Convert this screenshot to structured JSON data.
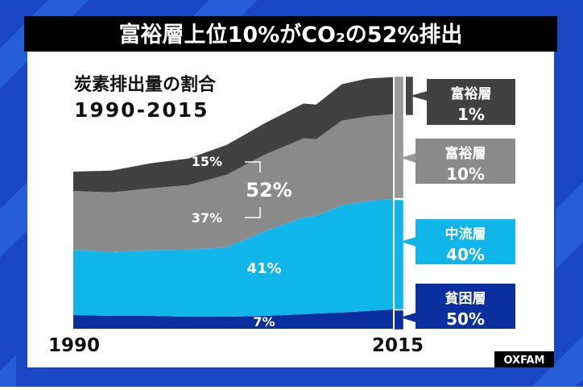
{
  "title": "富裕層上位10%がCO₂の52%排出",
  "source": "OXFAM",
  "colors": {
    "background": "#1a47c4",
    "stripe": "#2a64dc",
    "top1": "#414141",
    "top10": "#8a8a8a",
    "middle40": "#10b6ea",
    "bottom50": "#0c2fa0"
  },
  "chart_data": {
    "type": "area",
    "stacked": true,
    "title": "炭素排出量の割合",
    "subtitle": "1990-2015",
    "x": [
      1990,
      1993,
      1996,
      1999,
      2002,
      2005,
      2008,
      2009,
      2011,
      2013,
      2015
    ],
    "x_tick_labels": [
      "1990",
      "2015"
    ],
    "ylim": [
      0,
      165
    ],
    "grid": false,
    "series": [
      {
        "name": "貧困層 50%",
        "color": "#0c2fa0",
        "values": [
          8.7,
          8.2,
          8.2,
          7.7,
          7.7,
          8.2,
          9.2,
          9.7,
          10.3,
          11.3,
          12.3
        ]
      },
      {
        "name": "中流層 40%",
        "color": "#10b6ea",
        "values": [
          41.5,
          40.5,
          41.6,
          42.6,
          44.1,
          53.9,
          61.6,
          62.1,
          68.2,
          69.8,
          70.3
        ]
      },
      {
        "name": "富裕層 10%",
        "color": "#8a8a8a",
        "values": [
          37.4,
          38,
          39.5,
          41,
          46.2,
          48.7,
          50.3,
          48.7,
          53.9,
          53.9,
          53.9
        ]
      },
      {
        "name": "富裕層 1%",
        "color": "#414141",
        "values": [
          12.3,
          13.9,
          15.9,
          16.9,
          19,
          20,
          22.1,
          22.1,
          23.1,
          24.1,
          23.6
        ]
      }
    ],
    "annotations": {
      "top1_share": "15%",
      "top10_share": "37%",
      "combined_share": "52%",
      "middle_share": "41%",
      "bottom_share": "7%"
    },
    "legend": [
      {
        "group": "富裕層",
        "pct": "1%"
      },
      {
        "group": "富裕層",
        "pct": "10%"
      },
      {
        "group": "中流層",
        "pct": "40%"
      },
      {
        "group": "貧困層",
        "pct": "50%"
      }
    ],
    "legend_placement": "right"
  }
}
